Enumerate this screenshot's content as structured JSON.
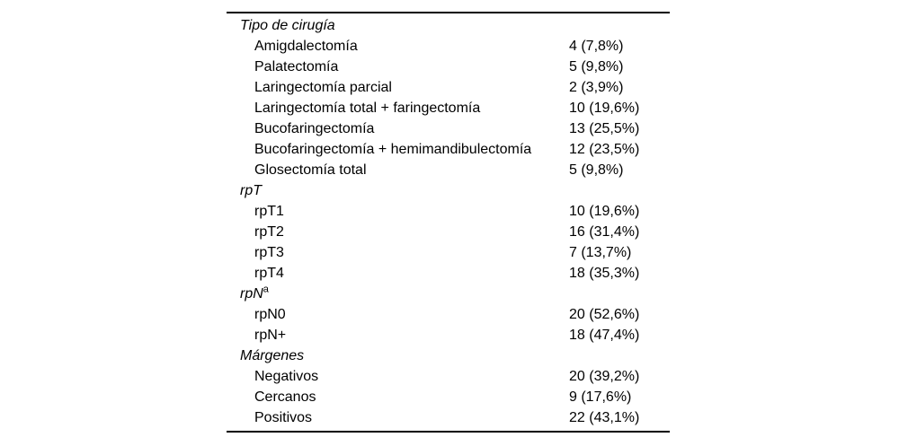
{
  "table": {
    "sections": [
      {
        "header": "Tipo de cirugía",
        "header_sup": "",
        "rows": [
          {
            "label": "Amigdalectomía",
            "value": "4 (7,8%)"
          },
          {
            "label": "Palatectomía",
            "value": "5 (9,8%)"
          },
          {
            "label": "Laringectomía parcial",
            "value": "2 (3,9%)"
          },
          {
            "label": "Laringectomía total + faringectomía",
            "value": "10 (19,6%)"
          },
          {
            "label": "Bucofaringectomía",
            "value": "13 (25,5%)"
          },
          {
            "label": "Bucofaringectomía + hemimandibulectomía",
            "value": "12 (23,5%)"
          },
          {
            "label": "Glosectomía total",
            "value": "5 (9,8%)"
          }
        ]
      },
      {
        "header": "rpT",
        "header_sup": "",
        "rows": [
          {
            "label": "rpT1",
            "value": "10 (19,6%)"
          },
          {
            "label": "rpT2",
            "value": "16 (31,4%)"
          },
          {
            "label": "rpT3",
            "value": "7 (13,7%)"
          },
          {
            "label": "rpT4",
            "value": "18 (35,3%)"
          }
        ]
      },
      {
        "header": "rpN",
        "header_sup": "a",
        "rows": [
          {
            "label": "rpN0",
            "value": "20 (52,6%)"
          },
          {
            "label": "rpN+",
            "value": "18 (47,4%)"
          }
        ]
      },
      {
        "header": "Márgenes",
        "header_sup": "",
        "rows": [
          {
            "label": "Negativos",
            "value": "20 (39,2%)"
          },
          {
            "label": "Cercanos",
            "value": "9 (17,6%)"
          },
          {
            "label": "Positivos",
            "value": "22 (43,1%)"
          }
        ]
      }
    ]
  }
}
